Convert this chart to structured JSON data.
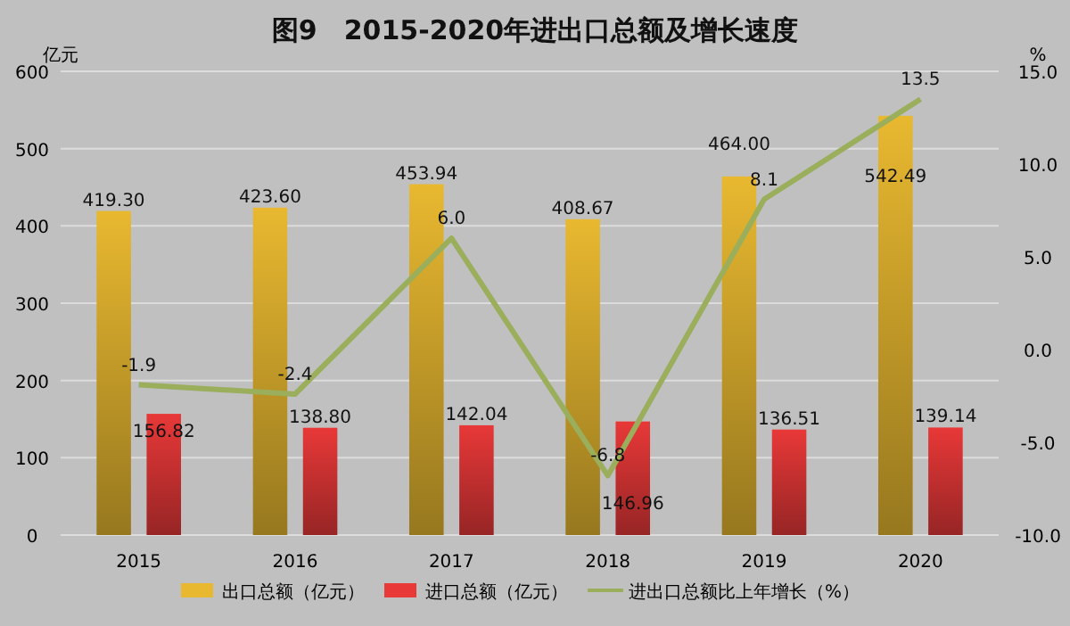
{
  "chart_data": {
    "type": "bar",
    "title": "图9　2015-2020年进出口总额及增长速度",
    "ylabel": "亿元",
    "y2label": "%",
    "categories": [
      "2015",
      "2016",
      "2017",
      "2018",
      "2019",
      "2020"
    ],
    "series": [
      {
        "name": "出口总额（亿元）",
        "color": "#e8b830",
        "values": [
          419.3,
          423.6,
          453.94,
          408.67,
          464.0,
          542.49
        ],
        "value_labels": [
          "419.30",
          "423.60",
          "453.94",
          "408.67",
          "464.00",
          "542.49"
        ]
      },
      {
        "name": "进口总额（亿元）",
        "color": "#e83838",
        "values": [
          156.82,
          138.8,
          142.04,
          146.96,
          136.51,
          139.14
        ],
        "value_labels": [
          "156.82",
          "138.80",
          "142.04",
          "146.96",
          "136.51",
          "139.14"
        ]
      },
      {
        "name": "进出口总额比上年增长（%）",
        "type": "line",
        "axis": "y2",
        "color": "#9aae5c",
        "values": [
          -1.9,
          -2.4,
          6.0,
          -6.8,
          8.1,
          13.5
        ],
        "value_labels": [
          "-1.9",
          "-2.4",
          "6.0",
          "-6.8",
          "8.1",
          "13.5"
        ]
      }
    ],
    "ylim": [
      0,
      600
    ],
    "yticks": [
      0,
      100,
      200,
      300,
      400,
      500,
      600
    ],
    "y2lim": [
      -10,
      15
    ],
    "y2ticks": [
      {
        "value": -10,
        "label": "-10.0"
      },
      {
        "value": -5,
        "label": "-5.0"
      },
      {
        "value": 0,
        "label": "0.0"
      },
      {
        "value": 5,
        "label": "5.0"
      },
      {
        "value": 10,
        "label": "10.0"
      },
      {
        "value": 15,
        "label": "15.0"
      }
    ],
    "grid": "y",
    "legend": "bottom",
    "marker": "none"
  }
}
